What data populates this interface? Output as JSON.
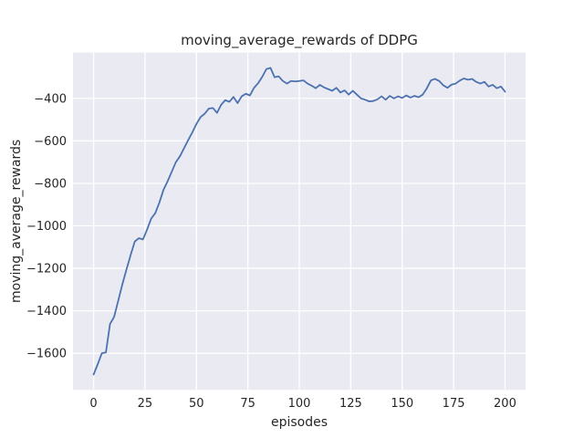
{
  "chart_data": {
    "type": "line",
    "title": "moving_average_rewards of DDPG",
    "xlabel": "episodes",
    "ylabel": "moving_average_rewards",
    "x": [
      0,
      2,
      4,
      6,
      8,
      10,
      12,
      14,
      16,
      18,
      20,
      22,
      24,
      26,
      28,
      30,
      32,
      34,
      36,
      38,
      40,
      42,
      44,
      46,
      48,
      50,
      52,
      54,
      56,
      58,
      60,
      62,
      64,
      66,
      68,
      70,
      72,
      74,
      76,
      78,
      80,
      82,
      84,
      86,
      88,
      90,
      92,
      94,
      96,
      98,
      100,
      102,
      104,
      106,
      108,
      110,
      112,
      114,
      116,
      118,
      120,
      122,
      124,
      126,
      128,
      130,
      132,
      134,
      136,
      138,
      140,
      142,
      144,
      146,
      148,
      150,
      152,
      154,
      156,
      158,
      160,
      162,
      164,
      166,
      168,
      170,
      172,
      174,
      176,
      178,
      180,
      182,
      184,
      186,
      188,
      190,
      192,
      194,
      196,
      198,
      200
    ],
    "series": [
      {
        "name": "moving_average_rewards",
        "color": "#4c72b0",
        "values": [
          -1700,
          -1652,
          -1600,
          -1596,
          -1462,
          -1428,
          -1352,
          -1275,
          -1205,
          -1138,
          -1074,
          -1058,
          -1064,
          -1018,
          -966,
          -940,
          -890,
          -830,
          -790,
          -745,
          -700,
          -672,
          -634,
          -596,
          -560,
          -520,
          -488,
          -472,
          -448,
          -445,
          -468,
          -430,
          -408,
          -416,
          -393,
          -422,
          -390,
          -378,
          -386,
          -350,
          -328,
          -298,
          -262,
          -256,
          -300,
          -296,
          -318,
          -330,
          -318,
          -320,
          -318,
          -315,
          -330,
          -340,
          -352,
          -336,
          -348,
          -356,
          -364,
          -350,
          -372,
          -362,
          -382,
          -364,
          -382,
          -400,
          -406,
          -414,
          -412,
          -404,
          -390,
          -406,
          -388,
          -400,
          -390,
          -398,
          -386,
          -396,
          -388,
          -394,
          -382,
          -352,
          -315,
          -308,
          -318,
          -338,
          -350,
          -335,
          -330,
          -316,
          -306,
          -312,
          -308,
          -322,
          -330,
          -322,
          -344,
          -336,
          -352,
          -344,
          -368
        ]
      }
    ],
    "xlim": [
      -10,
      210
    ],
    "ylim": [
      -1772,
      -184
    ],
    "xticks": [
      0,
      25,
      50,
      75,
      100,
      125,
      150,
      175,
      200
    ],
    "yticks": [
      -1600,
      -1400,
      -1200,
      -1000,
      -800,
      -600,
      -400
    ],
    "xtick_labels": [
      "0",
      "25",
      "50",
      "75",
      "100",
      "125",
      "150",
      "175",
      "200"
    ],
    "ytick_labels": [
      "−1600",
      "−1400",
      "−1200",
      "−1000",
      "−800",
      "−600",
      "−400"
    ],
    "grid": true,
    "legend": "none",
    "style": {
      "figure_bg": "#ffffff",
      "plot_bg": "#eaeaf2",
      "grid_color": "#ffffff",
      "text_color": "#262626",
      "line_color": "#4c72b0"
    }
  }
}
